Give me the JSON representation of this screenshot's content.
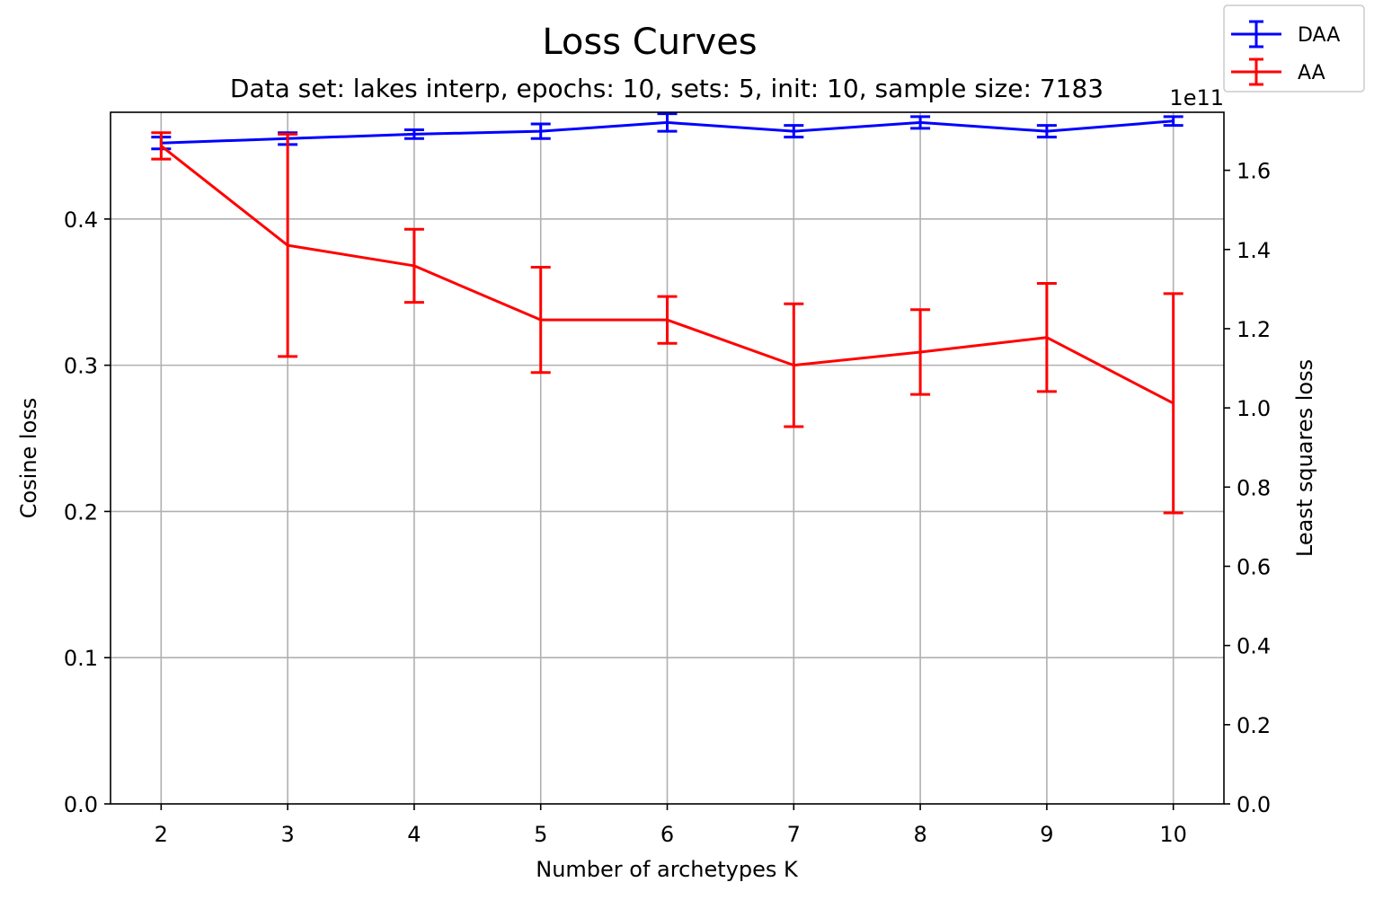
{
  "chart_data": {
    "type": "line",
    "title": "Loss Curves",
    "subtitle": "Data set:  lakes interp, epochs: 10, sets: 5, init: 10, sample size: 7183",
    "xlabel": "Number of archetypes K",
    "ylabel_left": "Cosine loss",
    "ylabel_right": "Least squares loss",
    "right_axis_offset_text": "1e11",
    "x": [
      2,
      3,
      4,
      5,
      6,
      7,
      8,
      9,
      10
    ],
    "xlim": [
      1.6,
      10.4
    ],
    "ylim_left": [
      0.0,
      0.473
    ],
    "ylim_right": [
      0.0,
      1.7465
    ],
    "x_ticks": [
      "2",
      "3",
      "4",
      "5",
      "6",
      "7",
      "8",
      "9",
      "10"
    ],
    "y_ticks_left": [
      "0.0",
      "0.1",
      "0.2",
      "0.3",
      "0.4"
    ],
    "y_ticks_right": [
      "0.0",
      "0.2",
      "0.4",
      "0.6",
      "0.8",
      "1.0",
      "1.2",
      "1.4",
      "1.6"
    ],
    "grid": true,
    "legend_position": "top-right",
    "series": [
      {
        "name": "DAA",
        "axis": "left",
        "color": "#0000ff",
        "values": [
          0.452,
          0.455,
          0.458,
          0.46,
          0.466,
          0.46,
          0.466,
          0.46,
          0.467
        ],
        "errors": [
          0.004,
          0.004,
          0.003,
          0.005,
          0.006,
          0.004,
          0.004,
          0.004,
          0.003
        ]
      },
      {
        "name": "AA",
        "axis": "left",
        "color": "#ff0000",
        "values": [
          0.45,
          0.382,
          0.368,
          0.331,
          0.331,
          0.3,
          0.309,
          0.319,
          0.274
        ],
        "errors": [
          0.009,
          0.076,
          0.025,
          0.036,
          0.016,
          0.042,
          0.029,
          0.037,
          0.075
        ]
      }
    ]
  }
}
